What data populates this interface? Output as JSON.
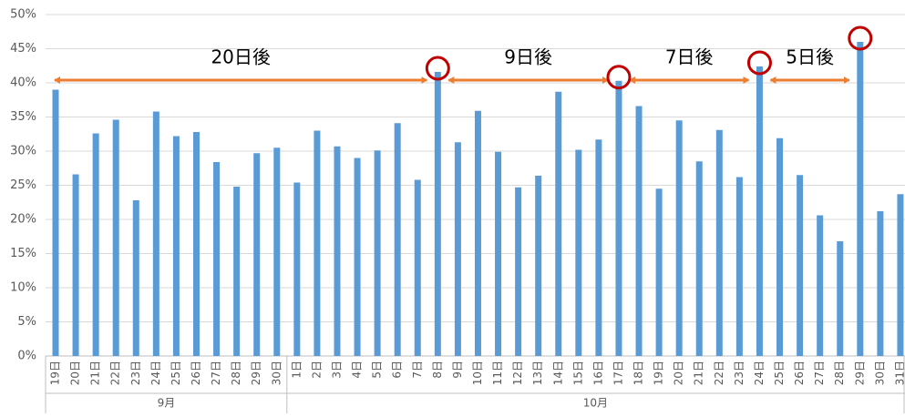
{
  "chart_data": {
    "type": "bar",
    "categories": [
      "19日",
      "20日",
      "21日",
      "22日",
      "23日",
      "24日",
      "25日",
      "26日",
      "27日",
      "28日",
      "29日",
      "30日",
      "1日",
      "2日",
      "3日",
      "4日",
      "5日",
      "6日",
      "7日",
      "8日",
      "9日",
      "10日",
      "11日",
      "12日",
      "13日",
      "14日",
      "15日",
      "16日",
      "17日",
      "18日",
      "19日",
      "20日",
      "21日",
      "22日",
      "23日",
      "24日",
      "25日",
      "26日",
      "27日",
      "28日",
      "29日",
      "30日",
      "31日"
    ],
    "groups": [
      "9月",
      "10月"
    ],
    "values": [
      39,
      26.6,
      32.6,
      34.6,
      22.8,
      35.8,
      32.2,
      32.8,
      28.4,
      24.8,
      29.7,
      30.5,
      25.4,
      33,
      30.7,
      29,
      30.1,
      34.1,
      25.8,
      41.6,
      31.3,
      35.9,
      29.9,
      24.7,
      26.4,
      38.7,
      30.2,
      31.7,
      40.3,
      36.6,
      24.5,
      34.5,
      28.5,
      33.1,
      26.2,
      42.4,
      31.9,
      26.5,
      20.6,
      16.8,
      46,
      21.2,
      23.7
    ],
    "color": "#5b9bd5",
    "ylim": [
      0,
      50
    ],
    "yticks": [
      {
        "value": 0,
        "label": "0%"
      },
      {
        "value": 5,
        "label": "5%"
      },
      {
        "value": 10,
        "label": "10%"
      },
      {
        "value": 15,
        "label": "15%"
      },
      {
        "value": 20,
        "label": "20%"
      },
      {
        "value": 25,
        "label": "25%"
      },
      {
        "value": 30,
        "label": "30%"
      },
      {
        "value": 35,
        "label": "35%"
      },
      {
        "value": 40,
        "label": "40%"
      },
      {
        "value": 45,
        "label": "45%"
      },
      {
        "value": 50,
        "label": "50%"
      }
    ],
    "grid": true,
    "annotations": [
      "20日後",
      "9日後",
      "7日後",
      "5日後"
    ]
  }
}
